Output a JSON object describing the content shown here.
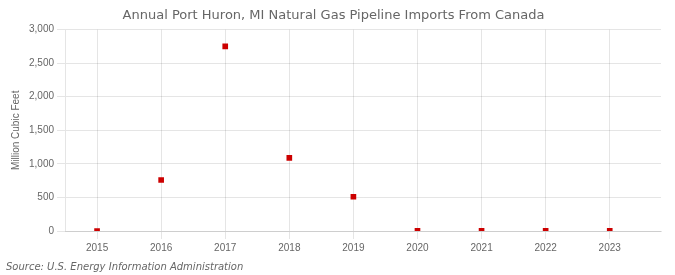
{
  "chart_data": {
    "type": "scatter",
    "title": "Annual Port Huron, MI Natural Gas Pipeline Imports From Canada",
    "ylabel": "Million Cubic Feet",
    "annotation": "Source: U.S. Energy Information Administration",
    "x": [
      2015,
      2016,
      2017,
      2018,
      2019,
      2020,
      2021,
      2022,
      2023
    ],
    "values": [
      0,
      760,
      2750,
      1090,
      510,
      2,
      2,
      2,
      2
    ],
    "color": "#cc0000",
    "marker": "square",
    "xlim": [
      2014.5,
      2023.8
    ],
    "xticks": [
      2015,
      2016,
      2017,
      2018,
      2019,
      2020,
      2021,
      2022,
      2023
    ],
    "ylim": [
      0,
      3000
    ],
    "yticks": [
      0,
      500,
      {
        "value": 1000,
        "label": "1,000"
      },
      {
        "value": 1500,
        "label": "1,500"
      },
      {
        "value": 2000,
        "label": "2,000"
      },
      {
        "value": 2500,
        "label": "2,500"
      },
      {
        "value": 3000,
        "label": "3,000"
      }
    ],
    "grid": true
  }
}
